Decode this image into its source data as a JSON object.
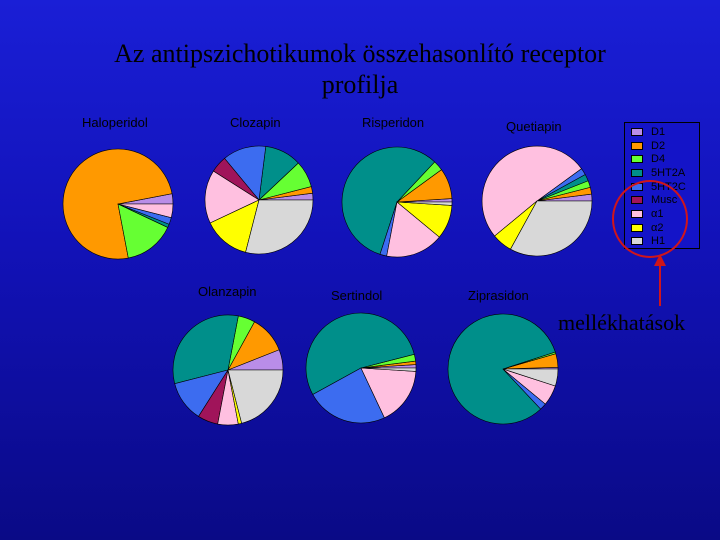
{
  "title_lines": [
    "Az antipszichotikumok összehasonlító receptor",
    "profilja"
  ],
  "side_effect_label": "mellékhatások",
  "receptors": [
    {
      "name": "D1",
      "color": "#b98de8"
    },
    {
      "name": "D2",
      "color": "#ff9900"
    },
    {
      "name": "D4",
      "color": "#66ff33"
    },
    {
      "name": "5HT2A",
      "color": "#008f8a"
    },
    {
      "name": "5HT2C",
      "color": "#3c6cf0"
    },
    {
      "name": "Musc",
      "color": "#a0145a"
    },
    {
      "name": "α1",
      "color": "#ffc0e0"
    },
    {
      "name": "α2",
      "color": "#ffff00"
    },
    {
      "name": "H1",
      "color": "#d8d8d8"
    }
  ],
  "chart_data": [
    {
      "type": "pie",
      "title": "Haloperidol",
      "labels": [
        "D1",
        "D2",
        "D4",
        "5HT2A",
        "5HT2C",
        "Musc",
        "α1",
        "α2",
        "H1"
      ],
      "values": [
        3,
        75,
        15,
        1,
        2,
        0,
        4,
        0,
        0
      ]
    },
    {
      "type": "pie",
      "title": "Clozapin",
      "labels": [
        "D1",
        "D2",
        "D4",
        "5HT2A",
        "5HT2C",
        "Musc",
        "α1",
        "α2",
        "H1"
      ],
      "values": [
        2,
        2,
        8,
        11,
        13,
        5,
        16,
        14,
        29
      ]
    },
    {
      "type": "pie",
      "title": "Risperidon",
      "labels": [
        "D1",
        "D2",
        "D4",
        "5HT2A",
        "5HT2C",
        "Musc",
        "α1",
        "α2",
        "H1"
      ],
      "values": [
        1,
        9,
        3,
        57,
        2,
        0,
        17,
        10,
        1
      ]
    },
    {
      "type": "pie",
      "title": "Quetiapin",
      "labels": [
        "D1",
        "D2",
        "D4",
        "5HT2A",
        "5HT2C",
        "Musc",
        "α1",
        "α2",
        "H1"
      ],
      "values": [
        2,
        2,
        2,
        2,
        2,
        0,
        51,
        6,
        33
      ]
    },
    {
      "type": "pie",
      "title": "Olanzapin",
      "labels": [
        "D1",
        "D2",
        "D4",
        "5HT2A",
        "5HT2C",
        "Musc",
        "α1",
        "α2",
        "H1"
      ],
      "values": [
        6,
        11,
        5,
        32,
        12,
        6,
        6,
        1,
        21
      ]
    },
    {
      "type": "pie",
      "title": "Sertindol",
      "labels": [
        "D1",
        "D2",
        "D4",
        "5HT2A",
        "5HT2C",
        "Musc",
        "α1",
        "α2",
        "H1"
      ],
      "values": [
        1,
        1,
        2,
        54,
        24,
        0,
        17,
        0,
        1
      ]
    },
    {
      "type": "pie",
      "title": "Ziprasidon",
      "labels": [
        "D1",
        "D2",
        "D4",
        "5HT2A",
        "5HT2C",
        "Musc",
        "α1",
        "α2",
        "H1"
      ],
      "values": [
        0.5,
        4,
        0.5,
        82,
        2,
        0,
        6,
        0,
        5
      ]
    }
  ]
}
